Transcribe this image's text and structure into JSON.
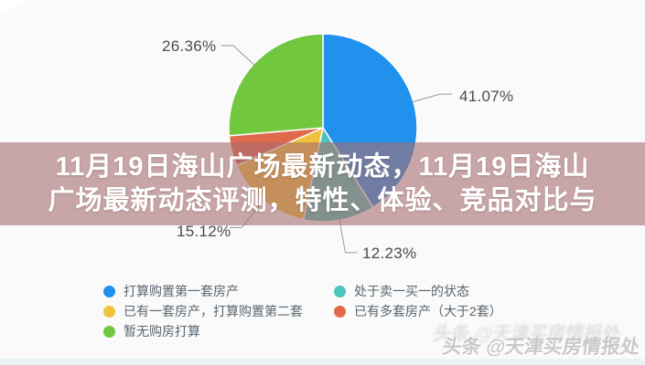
{
  "banner": {
    "line1": "11月19日海山广场最新动态，11月19日海山",
    "line2": "广场最新动态评测，特性、体验、竞品对比与"
  },
  "watermark": {
    "text": "头条 @天津买房情报处"
  },
  "chart_data": {
    "type": "pie",
    "title": "",
    "center": [
      353,
      140
    ],
    "radius": 103,
    "start_angle_deg": 0,
    "clockwise": true,
    "legend_position": "bottom",
    "slice_border_color": "#ffffff",
    "leader_line_color": "#9a9a9a",
    "slices": [
      {
        "name": "打算购置第一套房产",
        "value": 41.07,
        "color": "#2191ee",
        "label_text": "41.07%",
        "label_visible": true,
        "leader_len": 30
      },
      {
        "name": "处于卖一买一的状态",
        "value": 12.23,
        "color": "#4bc4bb",
        "label_text": "12.23%",
        "label_visible": true,
        "leader_len": 36
      },
      {
        "name": "已有一套房产，打算购置第二套",
        "value": 15.12,
        "color": "#f0c13d",
        "label_text": "15.12%",
        "label_visible": true,
        "leader_len": 38
      },
      {
        "name": "已有多套房产（大于2套）",
        "value": 5.22,
        "color": "#e06a4e",
        "label_text": "",
        "label_visible": false,
        "leader_len": 0
      },
      {
        "name": "暂无购房打算",
        "value": 26.36,
        "color": "#71c73e",
        "label_text": "26.36%",
        "label_visible": true,
        "leader_len": 30
      }
    ],
    "legend": {
      "columns": [
        {
          "rows": [
            {
              "slice_index": 0
            },
            {
              "slice_index": 2
            },
            {
              "slice_index": 4
            }
          ]
        },
        {
          "rows": [
            {
              "slice_index": 1
            },
            {
              "slice_index": 3
            }
          ]
        }
      ]
    }
  }
}
